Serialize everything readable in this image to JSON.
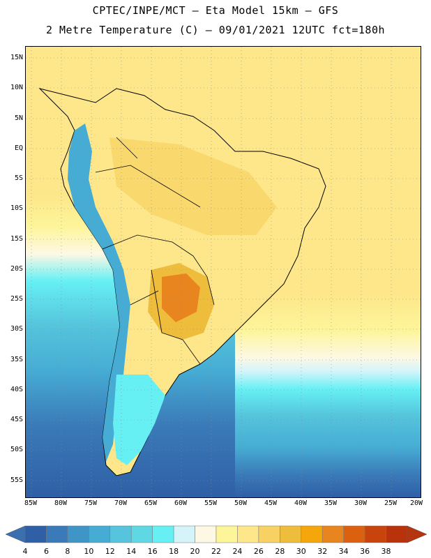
{
  "title_line1": "CPTEC/INPE/MCT –  Eta Model 15km – GFS",
  "title_line2": "2 Metre Temperature (C) – 09/01/2021 12UTC fct=180h",
  "lat_labels": [
    "15N",
    "10N",
    "5N",
    "EQ",
    "5S",
    "10S",
    "15S",
    "20S",
    "25S",
    "30S",
    "35S",
    "40S",
    "45S",
    "50S",
    "55S"
  ],
  "lon_labels": [
    "85W",
    "80W",
    "75W",
    "70W",
    "65W",
    "60W",
    "55W",
    "50W",
    "45W",
    "40W",
    "35W",
    "30W",
    "25W",
    "20W"
  ],
  "colorbar": {
    "labels": [
      "4",
      "6",
      "8",
      "10",
      "12",
      "14",
      "16",
      "18",
      "20",
      "22",
      "24",
      "26",
      "28",
      "30",
      "32",
      "34",
      "36",
      "38"
    ],
    "colors": [
      "#2f5fa6",
      "#3a7ab8",
      "#3f95c6",
      "#46acd4",
      "#55c4dc",
      "#5fd8e4",
      "#66f0f4",
      "#d4f4fa",
      "#fdf8e4",
      "#fdf59a",
      "#fde78a",
      "#f7d163",
      "#efbd3c",
      "#f4a60a",
      "#e9851e",
      "#db6110",
      "#c9430c",
      "#b8320c"
    ],
    "under_color": "#3a6fb0",
    "over_color": "#b5350f"
  }
}
